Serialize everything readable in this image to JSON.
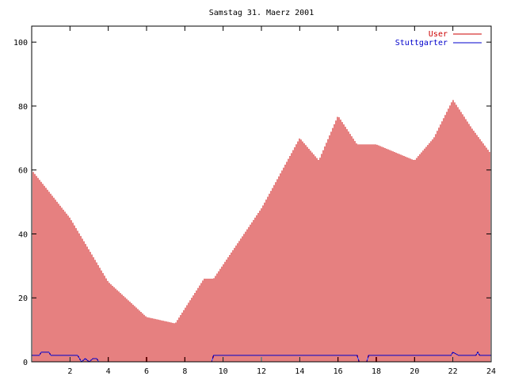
{
  "chart_data": {
    "type": "bar",
    "title": "Samstag 31. Maerz 2001",
    "xlabel": "",
    "ylabel": "",
    "xlim": [
      0,
      24
    ],
    "ylim": [
      0,
      105
    ],
    "xticks": [
      2,
      4,
      6,
      8,
      10,
      12,
      14,
      16,
      18,
      20,
      22,
      24
    ],
    "yticks": [
      0,
      20,
      40,
      60,
      80,
      100
    ],
    "grid": false,
    "legend_position": "top-right",
    "series": [
      {
        "name": "User",
        "color": "#cc0000",
        "style": "impulses",
        "x": [
          0,
          2,
          4,
          6,
          7.5,
          9,
          9.5,
          12,
          14,
          15,
          16,
          17,
          18,
          20,
          21,
          22,
          23,
          24
        ],
        "values": [
          60,
          45,
          25,
          14,
          12,
          26,
          26,
          48,
          70,
          63,
          77,
          68,
          68,
          63,
          70,
          82,
          73,
          65
        ]
      },
      {
        "name": "Stuttgarter",
        "color": "#0000cc",
        "style": "line",
        "x": [
          0,
          0.4,
          0.5,
          0.9,
          1.0,
          2.4,
          2.5,
          2.6,
          2.8,
          3.0,
          3.2,
          3.4,
          3.5,
          9.4,
          9.5,
          17.0,
          17.1,
          17.5,
          17.6,
          21.9,
          22.0,
          22.3,
          22.4,
          23.2,
          23.3,
          23.4,
          23.5,
          24
        ],
        "values": [
          2,
          2,
          3,
          3,
          2,
          2,
          1,
          0,
          1,
          0,
          1,
          1,
          0,
          0,
          2,
          2,
          0,
          0,
          2,
          2,
          3,
          2,
          2,
          2,
          3,
          2,
          2,
          2
        ]
      }
    ]
  }
}
